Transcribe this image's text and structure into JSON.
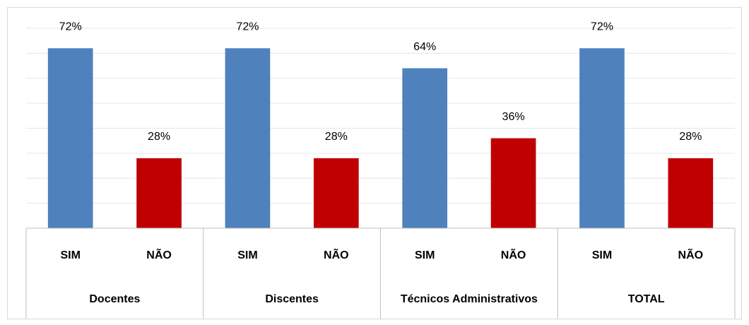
{
  "chart_data": {
    "type": "bar",
    "groups": [
      "Docentes",
      "Discentes",
      "Técnicos Administrativos",
      "TOTAL"
    ],
    "categories": [
      "SIM",
      "NÃO",
      "SIM",
      "NÃO",
      "SIM",
      "NÃO",
      "SIM",
      "NÃO"
    ],
    "values": [
      72,
      28,
      72,
      28,
      64,
      36,
      72,
      28
    ],
    "value_labels": [
      "72%",
      "28%",
      "72%",
      "28%",
      "64%",
      "36%",
      "72%",
      "28%"
    ],
    "colors": [
      "#4f81bd",
      "#c00000",
      "#4f81bd",
      "#c00000",
      "#4f81bd",
      "#c00000",
      "#4f81bd",
      "#c00000"
    ],
    "ylim": [
      0,
      80
    ],
    "yticks": [
      0,
      10,
      20,
      30,
      40,
      50,
      60,
      70,
      80
    ],
    "grid": true
  }
}
